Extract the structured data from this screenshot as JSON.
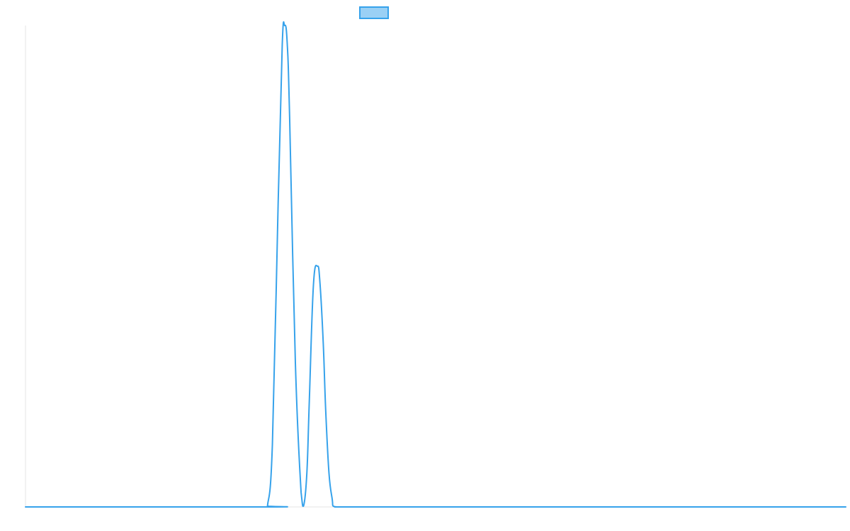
{
  "chart_data": {
    "type": "line",
    "title": "",
    "xlabel": "",
    "ylabel": "",
    "xlim": [
      0,
      100
    ],
    "ylim": [
      0,
      100
    ],
    "grid": false,
    "legend_position": "top",
    "series": [
      {
        "name": "",
        "color": "#36a2eb",
        "fill": "#9ad0f5",
        "x": [
          0,
          29.3,
          29.5,
          30.1,
          30.8,
          31.3,
          31.6,
          31.9,
          32.2,
          32.9,
          33.6,
          33.9,
          34.3,
          34.6,
          35.1,
          35.6,
          35.9,
          36.3,
          36.6,
          37.0,
          37.4,
          37.5,
          38.0,
          39.0,
          50.0,
          60.0,
          70.0,
          80.0,
          90.0,
          100
        ],
        "y": [
          0,
          0,
          0.2,
          13.0,
          63.0,
          96.0,
          100.0,
          96.5,
          81.0,
          30.0,
          3.0,
          0.2,
          7.0,
          22.0,
          46.0,
          50.0,
          46.5,
          34.0,
          20.0,
          7.0,
          1.5,
          0.2,
          0,
          0,
          0,
          0,
          0,
          0,
          0,
          0
        ]
      }
    ]
  }
}
